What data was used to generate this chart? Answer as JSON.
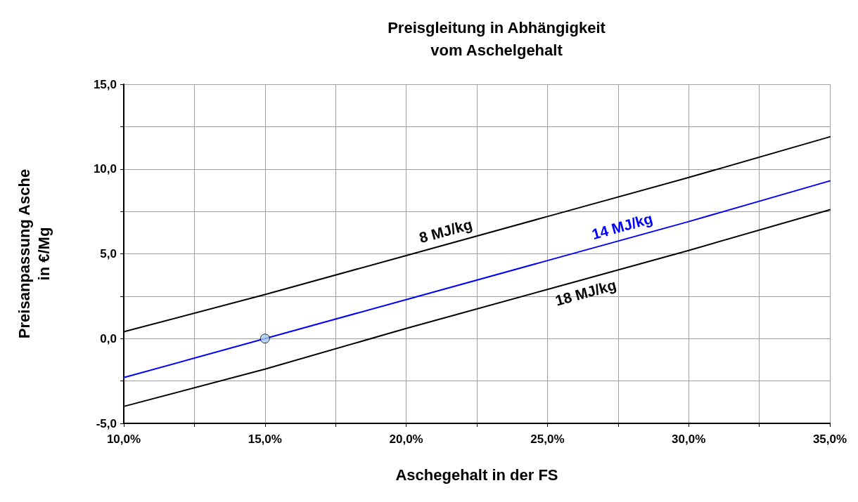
{
  "chart_data": {
    "type": "line",
    "title": "Preisgleitung in Abhängigkeit\nvom Aschelgehalt",
    "xlabel": "Aschegehalt in der FS",
    "ylabel": "Preisanpassung Asche\nin €/Mg",
    "x": [
      10,
      15,
      20,
      25,
      30,
      35
    ],
    "series": [
      {
        "name": "8 MJ/kg",
        "color": "#000000",
        "values": [
          0.4,
          2.6,
          4.9,
          7.2,
          9.5,
          11.9
        ]
      },
      {
        "name": "14 MJ/kg",
        "color": "#0000ff",
        "values": [
          -2.3,
          0,
          2.3,
          4.6,
          6.9,
          9.3
        ]
      },
      {
        "name": "18 MJ/kg",
        "color": "#000000",
        "values": [
          -4.0,
          -1.8,
          0.6,
          2.9,
          5.2,
          7.6
        ]
      },
      {
        "type": "scatter",
        "color": "#a6caf0",
        "x": [
          15
        ],
        "values": [
          0
        ],
        "marker": "circle"
      }
    ],
    "xlim": [
      10,
      35
    ],
    "xticks": [
      {
        "value": 10,
        "label": "10,0%"
      },
      {
        "value": 12.5,
        "label": null
      },
      {
        "value": 15,
        "label": "15,0%"
      },
      {
        "value": 17.5,
        "label": null
      },
      {
        "value": 20,
        "label": "20,0%"
      },
      {
        "value": 22.5,
        "label": null
      },
      {
        "value": 25,
        "label": "25,0%"
      },
      {
        "value": 27.5,
        "label": null
      },
      {
        "value": 30,
        "label": "30,0%"
      },
      {
        "value": 32.5,
        "label": null
      },
      {
        "value": 35,
        "label": "35,0%"
      }
    ],
    "ylim": [
      -5,
      15
    ],
    "yticks": [
      {
        "value": -5,
        "label": "-5,0"
      },
      {
        "value": -2.5,
        "label": null
      },
      {
        "value": 0,
        "label": "0,0"
      },
      {
        "value": 2.5,
        "label": null
      },
      {
        "value": 5,
        "label": "5,0"
      },
      {
        "value": 7.5,
        "label": null
      },
      {
        "value": 10,
        "label": "10,0"
      },
      {
        "value": 12.5,
        "label": null
      },
      {
        "value": 15,
        "label": "15,0"
      }
    ],
    "grid": true,
    "legend": false,
    "marker": "none",
    "line_style": "solid"
  }
}
